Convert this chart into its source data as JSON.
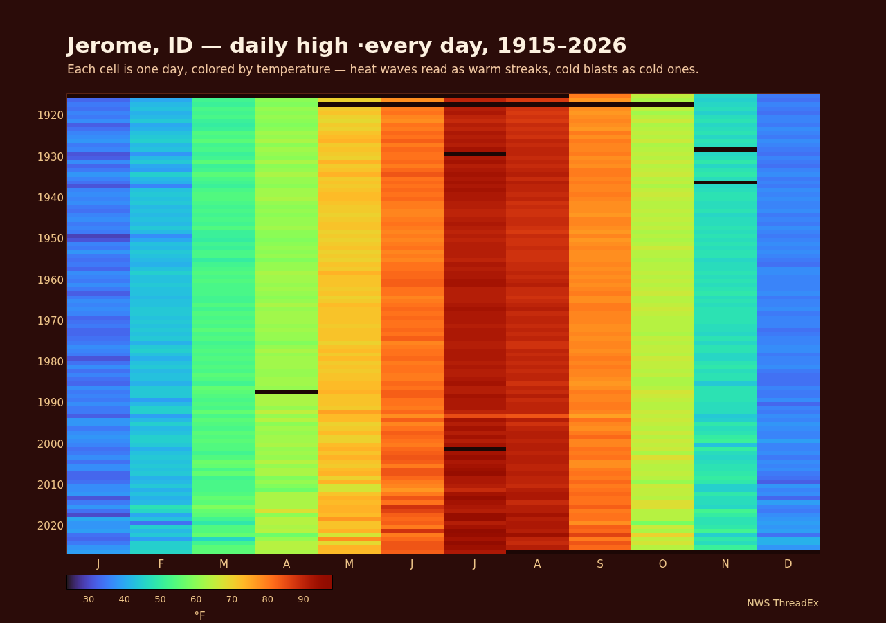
{
  "chart_data": {
    "type": "heatmap",
    "title": "Jerome, ID — daily high ·every day, 1915–2026",
    "subtitle": "Each cell is one day, colored by temperature — heat waves read as warm streaks, cold blasts as cold ones.",
    "categories": [
      "J",
      "F",
      "M",
      "A",
      "M",
      "J",
      "J",
      "A",
      "S",
      "O",
      "N",
      "D"
    ],
    "y_categories": [
      null,
      null,
      null,
      null,
      null,
      "1920",
      null,
      null,
      null,
      null,
      null,
      null,
      null,
      null,
      null,
      "1930",
      null,
      null,
      null,
      null,
      null,
      null,
      null,
      null,
      null,
      "1940",
      null,
      null,
      null,
      null,
      null,
      null,
      null,
      null,
      null,
      "1950",
      null,
      null,
      null,
      null,
      null,
      null,
      null,
      null,
      null,
      "1960",
      null,
      null,
      null,
      null,
      null,
      null,
      null,
      null,
      null,
      "1970",
      null,
      null,
      null,
      null,
      null,
      null,
      null,
      null,
      null,
      "1980",
      null,
      null,
      null,
      null,
      null,
      null,
      null,
      null,
      null,
      "1990",
      null,
      null,
      null,
      null,
      null,
      null,
      null,
      null,
      null,
      "2000",
      null,
      null,
      null,
      null,
      null,
      null,
      null,
      null,
      null,
      "2010",
      null,
      null,
      null,
      null,
      null,
      null,
      null,
      null,
      null,
      "2020",
      null,
      null,
      null,
      null,
      null,
      null
    ],
    "cells": [
      [
        null,
        null,
        null,
        null,
        null,
        null,
        null,
        null,
        80,
        65,
        46,
        35
      ],
      [
        33,
        40,
        52,
        60,
        70,
        78,
        90,
        87,
        77,
        63,
        45,
        34
      ],
      [
        35,
        42,
        51,
        59,
        null,
        null,
        null,
        null,
        null,
        null,
        46,
        36
      ],
      [
        34,
        43,
        53,
        61,
        71,
        80,
        91,
        88,
        78,
        65,
        47,
        35
      ],
      [
        36,
        41,
        52,
        60,
        72,
        81,
        92,
        87,
        77,
        62,
        45,
        34
      ],
      [
        35,
        42,
        53,
        61,
        70,
        79,
        90,
        88,
        78,
        64,
        47,
        36
      ],
      [
        37,
        44,
        51,
        60,
        69,
        78,
        89,
        87,
        79,
        66,
        48,
        36
      ],
      [
        32,
        40,
        50,
        59,
        71,
        81,
        91,
        89,
        78,
        63,
        46,
        35
      ],
      [
        34,
        41,
        51,
        60,
        70,
        80,
        90,
        88,
        77,
        64,
        47,
        37
      ],
      [
        36,
        43,
        54,
        62,
        72,
        82,
        92,
        89,
        80,
        65,
        48,
        36
      ],
      [
        37,
        44,
        53,
        61,
        73,
        81,
        91,
        88,
        78,
        64,
        46,
        35
      ],
      [
        38,
        45,
        55,
        63,
        74,
        83,
        92,
        90,
        80,
        66,
        48,
        37
      ],
      [
        35,
        42,
        52,
        60,
        71,
        80,
        91,
        89,
        79,
        63,
        47,
        36
      ],
      [
        36,
        43,
        53,
        62,
        72,
        82,
        93,
        90,
        79,
        64,
        null,
        35
      ],
      [
        31,
        38,
        51,
        61,
        71,
        81,
        null,
        90,
        80,
        65,
        46,
        34
      ],
      [
        32,
        42,
        52,
        60,
        70,
        81,
        92,
        89,
        78,
        64,
        47,
        36
      ],
      [
        37,
        44,
        55,
        63,
        74,
        82,
        93,
        90,
        79,
        66,
        49,
        35
      ],
      [
        33,
        40,
        51,
        60,
        71,
        80,
        91,
        89,
        78,
        64,
        46,
        34
      ],
      [
        35,
        39,
        52,
        61,
        72,
        82,
        92,
        90,
        80,
        65,
        48,
        36
      ],
      [
        38,
        45,
        55,
        63,
        74,
        84,
        93,
        91,
        80,
        66,
        49,
        37
      ],
      [
        36,
        42,
        53,
        61,
        71,
        81,
        92,
        89,
        79,
        64,
        47,
        35
      ],
      [
        34,
        41,
        52,
        61,
        72,
        82,
        93,
        91,
        80,
        65,
        null,
        36
      ],
      [
        31,
        36,
        51,
        60,
        71,
        81,
        92,
        90,
        79,
        63,
        46,
        35
      ],
      [
        36,
        43,
        53,
        62,
        72,
        82,
        93,
        90,
        79,
        65,
        47,
        37
      ],
      [
        37,
        44,
        54,
        62,
        73,
        81,
        92,
        89,
        80,
        66,
        48,
        36
      ],
      [
        36,
        43,
        54,
        63,
        73,
        82,
        92,
        90,
        79,
        65,
        48,
        37
      ],
      [
        37,
        44,
        53,
        61,
        72,
        80,
        91,
        88,
        78,
        64,
        47,
        36
      ],
      [
        35,
        42,
        52,
        60,
        71,
        80,
        91,
        89,
        78,
        64,
        47,
        36
      ],
      [
        34,
        43,
        53,
        61,
        71,
        79,
        90,
        88,
        78,
        65,
        48,
        37
      ],
      [
        36,
        42,
        52,
        60,
        70,
        79,
        90,
        88,
        77,
        64,
        46,
        35
      ],
      [
        37,
        43,
        53,
        61,
        71,
        80,
        91,
        89,
        79,
        65,
        47,
        36
      ],
      [
        35,
        42,
        52,
        61,
        72,
        81,
        92,
        89,
        79,
        64,
        47,
        35
      ],
      [
        36,
        44,
        54,
        62,
        72,
        80,
        91,
        88,
        78,
        65,
        48,
        37
      ],
      [
        35,
        42,
        51,
        60,
        70,
        79,
        90,
        87,
        77,
        63,
        47,
        36
      ],
      [
        29,
        37,
        51,
        60,
        71,
        80,
        91,
        89,
        79,
        64,
        48,
        35
      ],
      [
        31,
        40,
        50,
        59,
        70,
        79,
        90,
        88,
        77,
        63,
        47,
        36
      ],
      [
        36,
        43,
        52,
        60,
        71,
        80,
        91,
        88,
        78,
        64,
        48,
        37
      ],
      [
        35,
        42,
        51,
        61,
        72,
        81,
        91,
        89,
        79,
        66,
        47,
        36
      ],
      [
        38,
        44,
        53,
        60,
        70,
        79,
        91,
        88,
        78,
        64,
        48,
        37
      ],
      [
        35,
        43,
        53,
        61,
        71,
        80,
        91,
        88,
        78,
        64,
        48,
        36
      ],
      [
        34,
        42,
        50,
        59,
        70,
        79,
        90,
        88,
        78,
        63,
        46,
        35
      ],
      [
        35,
        41,
        52,
        61,
        72,
        81,
        92,
        89,
        79,
        64,
        47,
        34
      ],
      [
        33,
        43,
        53,
        61,
        71,
        81,
        91,
        89,
        78,
        64,
        47,
        37
      ],
      [
        37,
        45,
        54,
        63,
        74,
        82,
        92,
        90,
        79,
        65,
        48,
        37
      ],
      [
        36,
        43,
        53,
        62,
        72,
        82,
        92,
        89,
        78,
        64,
        47,
        36
      ],
      [
        35,
        43,
        54,
        62,
        72,
        83,
        93,
        90,
        79,
        65,
        48,
        36
      ],
      [
        37,
        44,
        53,
        61,
        72,
        83,
        93,
        91,
        78,
        64,
        47,
        36
      ],
      [
        35,
        43,
        53,
        62,
        71,
        81,
        91,
        89,
        79,
        65,
        48,
        36
      ],
      [
        32,
        43,
        53,
        61,
        72,
        81,
        91,
        89,
        80,
        66,
        49,
        37
      ],
      [
        35,
        42,
        52,
        60,
        70,
        79,
        91,
        88,
        78,
        64,
        47,
        35
      ],
      [
        37,
        43,
        52,
        61,
        71,
        80,
        91,
        89,
        78,
        64,
        48,
        36
      ],
      [
        36,
        43,
        54,
        63,
        73,
        81,
        92,
        90,
        80,
        65,
        47,
        36
      ],
      [
        37,
        44,
        52,
        61,
        72,
        82,
        93,
        91,
        80,
        66,
        48,
        37
      ],
      [
        36,
        44,
        54,
        62,
        72,
        81,
        92,
        89,
        79,
        65,
        48,
        35
      ],
      [
        33,
        43,
        53,
        62,
        72,
        82,
        92,
        90,
        79,
        64,
        48,
        36
      ],
      [
        34,
        44,
        54,
        62,
        72,
        81,
        92,
        90,
        79,
        64,
        48,
        36
      ],
      [
        35,
        43,
        53,
        61,
        71,
        81,
        91,
        89,
        78,
        64,
        47,
        36
      ],
      [
        33,
        44,
        55,
        62,
        72,
        82,
        92,
        90,
        78,
        64,
        47,
        34
      ],
      [
        33,
        43,
        53,
        61,
        72,
        81,
        92,
        89,
        79,
        63,
        46,
        35
      ],
      [
        34,
        44,
        54,
        61,
        72,
        83,
        92,
        90,
        78,
        65,
        48,
        36
      ],
      [
        35,
        41,
        52,
        59,
        70,
        79,
        91,
        88,
        79,
        64,
        46,
        36
      ],
      [
        37,
        44,
        53,
        61,
        72,
        80,
        91,
        88,
        79,
        65,
        48,
        37
      ],
      [
        36,
        45,
        54,
        63,
        73,
        81,
        92,
        90,
        78,
        65,
        48,
        37
      ],
      [
        35,
        43,
        53,
        61,
        71,
        81,
        92,
        89,
        79,
        64,
        46,
        35
      ],
      [
        31,
        41,
        54,
        62,
        73,
        82,
        92,
        90,
        80,
        66,
        46,
        36
      ],
      [
        34,
        43,
        53,
        62,
        71,
        80,
        91,
        89,
        79,
        65,
        48,
        36
      ],
      [
        37,
        44,
        54,
        62,
        72,
        81,
        92,
        90,
        80,
        65,
        49,
        37
      ],
      [
        34,
        42,
        53,
        61,
        71,
        81,
        91,
        89,
        79,
        64,
        47,
        35
      ],
      [
        36,
        43,
        55,
        61,
        72,
        80,
        91,
        90,
        79,
        65,
        48,
        34
      ],
      [
        34,
        43,
        54,
        62,
        72,
        80,
        92,
        90,
        78,
        63,
        48,
        34
      ],
      [
        33,
        41,
        52,
        62,
        73,
        82,
        93,
        88,
        77,
        63,
        44,
        34
      ],
      [
        37,
        44,
        56,
        61,
        73,
        81,
        91,
        90,
        78,
        64,
        48,
        36
      ],
      [
        35,
        44,
        55,
        null,
        74,
        83,
        91,
        89,
        80,
        67,
        48,
        35
      ],
      [
        36,
        44,
        54,
        63,
        72,
        83,
        93,
        91,
        79,
        66,
        48,
        35
      ],
      [
        35,
        39,
        53,
        63,
        72,
        81,
        92,
        89,
        79,
        65,
        48,
        37
      ],
      [
        37,
        42,
        54,
        63,
        72,
        81,
        92,
        90,
        80,
        64,
        47,
        33
      ],
      [
        35,
        45,
        53,
        61,
        71,
        80,
        92,
        90,
        80,
        64,
        47,
        36
      ],
      [
        35,
        45,
        56,
        65,
        76,
        82,
        90,
        90,
        79,
        66,
        47,
        35
      ],
      [
        32,
        39,
        53,
        61,
        73,
        78,
        85,
        84,
        76,
        65,
        44,
        37
      ],
      [
        38,
        42,
        55,
        64,
        73,
        83,
        93,
        91,
        81,
        66,
        45,
        36
      ],
      [
        38,
        45,
        54,
        60,
        70,
        79,
        91,
        88,
        79,
        65,
        49,
        38
      ],
      [
        35,
        42,
        53,
        62,
        71,
        81,
        93,
        90,
        78,
        64,
        47,
        37
      ],
      [
        37,
        43,
        55,
        61,
        73,
        83,
        91,
        91,
        80,
        66,
        48,
        36
      ],
      [
        38,
        45,
        54,
        62,
        70,
        82,
        93,
        91,
        82,
        64,
        50,
        36
      ],
      [
        37,
        45,
        55,
        62,
        70,
        81,
        91,
        90,
        79,
        66,
        51,
        39
      ],
      [
        36,
        44,
        54,
        63,
        73,
        80,
        93,
        91,
        79,
        65,
        43,
        36
      ],
      [
        34,
        41,
        54,
        61,
        74,
        82,
        null,
        91,
        81,
        66,
        50,
        36
      ],
      [
        35,
        43,
        52,
        62,
        72,
        83,
        93,
        90,
        80,
        63,
        47,
        37
      ],
      [
        37,
        44,
        54,
        61,
        74,
        84,
        95,
        91,
        81,
        68,
        46,
        35
      ],
      [
        34,
        43,
        57,
        64,
        72,
        83,
        92,
        91,
        78,
        65,
        47,
        37
      ],
      [
        37,
        44,
        56,
        61,
        71,
        80,
        93,
        90,
        78,
        64,
        48,
        36
      ],
      [
        37,
        43,
        53,
        63,
        73,
        84,
        94,
        90,
        80,
        64,
        48,
        37
      ],
      [
        33,
        44,
        56,
        63,
        74,
        84,
        95,
        91,
        81,
        65,
        49,
        35
      ],
      [
        33,
        41,
        52,
        59,
        70,
        82,
        92,
        90,
        80,
        64,
        50,
        34
      ],
      [
        34,
        42,
        53,
        61,
        74,
        80,
        92,
        90,
        82,
        61,
        49,
        32
      ],
      [
        37,
        44,
        53,
        59,
        67,
        79,
        91,
        89,
        80,
        66,
        45,
        38
      ],
      [
        37,
        41,
        53,
        57,
        67,
        77,
        89,
        91,
        81,
        65,
        45,
        36
      ],
      [
        38,
        43,
        54,
        63,
        72,
        80,
        93,
        92,
        82,
        65,
        49,
        37
      ],
      [
        31,
        41,
        56,
        63,
        74,
        84,
        95,
        92,
        81,
        64,
        47,
        33
      ],
      [
        35,
        42,
        55,
        63,
        73,
        81,
        93,
        89,
        81,
        68,
        47,
        39
      ],
      [
        38,
        48,
        59,
        63,
        74,
        88,
        92,
        91,
        83,
        68,
        46,
        36
      ],
      [
        34,
        46,
        56,
        68,
        74,
        86,
        91,
        91,
        80,
        64,
        52,
        35
      ],
      [
        30,
        40,
        55,
        60,
        73,
        83,
        95,
        93,
        81,
        64,
        50,
        37
      ],
      [
        40,
        43,
        52,
        64,
        77,
        82,
        95,
        91,
        81,
        64,
        48,
        38
      ],
      [
        38,
        34,
        49,
        64,
        72,
        83,
        91,
        92,
        78,
        58,
        48,
        39
      ],
      [
        38,
        45,
        54,
        63,
        72,
        80,
        93,
        92,
        83,
        66,
        49,
        38
      ],
      [
        39,
        42,
        54,
        64,
        74,
        88,
        96,
        91,
        82,
        63,
        52,
        39
      ],
      [
        34,
        44,
        56,
        57,
        67,
        80,
        95,
        94,
        86,
        70,
        45,
        34
      ],
      [
        33,
        39,
        46,
        61,
        78,
        82,
        93,
        90,
        80,
        65,
        49,
        41
      ],
      [
        35,
        45,
        52,
        64,
        69,
        84,
        96,
        89,
        84,
        67,
        47,
        41
      ],
      [
        38,
        45,
        55,
        64,
        74,
        84,
        94,
        91,
        82,
        64,
        51,
        38
      ],
      [
        39,
        46,
        55,
        63,
        73,
        83,
        92,
        null,
        null,
        null,
        null,
        null
      ]
    ],
    "clim": [
      24,
      98
    ],
    "cticks": [
      30,
      40,
      50,
      60,
      70,
      80,
      90
    ],
    "clabel": "°F",
    "annotations": [
      "NWS ThreadEx"
    ]
  }
}
